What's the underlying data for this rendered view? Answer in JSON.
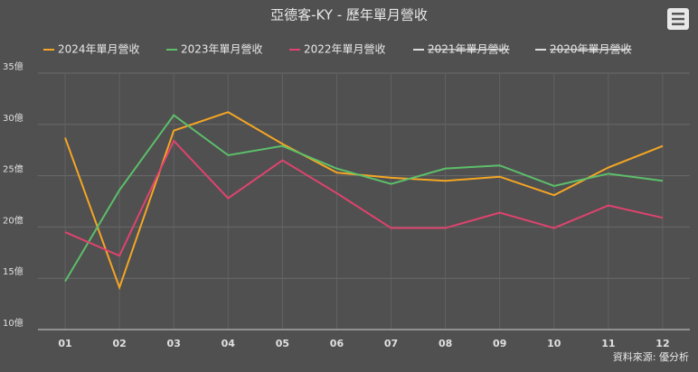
{
  "chart_data": {
    "type": "line",
    "title": "亞德客-KY - 歷年單月營收",
    "credit": "資料來源: 優分析",
    "categories": [
      "01",
      "02",
      "03",
      "04",
      "05",
      "06",
      "07",
      "08",
      "09",
      "10",
      "11",
      "12"
    ],
    "series": [
      {
        "name": "2024年單月營收",
        "color": "#f5a623",
        "visible": true,
        "values": [
          28.7,
          14.1,
          29.4,
          31.2,
          28.1,
          25.3,
          24.8,
          24.5,
          24.9,
          23.1,
          25.8,
          27.9
        ]
      },
      {
        "name": "2023年單月營收",
        "color": "#5cbf6a",
        "visible": true,
        "values": [
          14.7,
          23.6,
          30.9,
          27.0,
          27.9,
          25.7,
          24.2,
          25.7,
          26.0,
          24.0,
          25.2,
          24.5
        ]
      },
      {
        "name": "2022年單月營收",
        "color": "#e0436f",
        "visible": true,
        "values": [
          19.5,
          17.2,
          28.4,
          22.8,
          26.5,
          23.3,
          19.9,
          19.9,
          21.4,
          19.9,
          22.1,
          20.9
        ]
      },
      {
        "name": "2021年單月營收",
        "color": "#dddddd",
        "visible": false,
        "values": [
          null,
          null,
          null,
          null,
          null,
          null,
          null,
          null,
          null,
          null,
          null,
          null
        ]
      },
      {
        "name": "2020年單月營收",
        "color": "#dddddd",
        "visible": false,
        "values": [
          null,
          null,
          null,
          null,
          null,
          null,
          null,
          null,
          null,
          null,
          null,
          null
        ]
      }
    ],
    "ylim": [
      10,
      35
    ],
    "yticks": [
      {
        "value": 10,
        "label": "10億"
      },
      {
        "value": 15,
        "label": "15億"
      },
      {
        "value": 20,
        "label": "20億"
      },
      {
        "value": 25,
        "label": "25億"
      },
      {
        "value": 30,
        "label": "30億"
      },
      {
        "value": 35,
        "label": "35億"
      }
    ],
    "grid": true
  }
}
